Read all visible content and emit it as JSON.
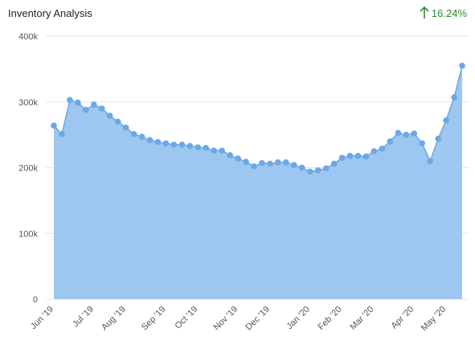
{
  "header": {
    "title": "Inventory Analysis",
    "change_text": "16.24%",
    "change_icon": "arrow-up-icon",
    "change_color": "#2e8b2e"
  },
  "colors": {
    "area_fill": "#9dc6f0",
    "line": "#6aa9e6",
    "point": "#6aa9e6",
    "grid": "#e6e6e6"
  },
  "chart_data": {
    "type": "area",
    "title": "Inventory Analysis",
    "xlabel": "",
    "ylabel": "",
    "ylim": [
      0,
      400000
    ],
    "grid": true,
    "y_ticks": [
      {
        "value": 0,
        "label": "0"
      },
      {
        "value": 100000,
        "label": "100k"
      },
      {
        "value": 200000,
        "label": "200k"
      },
      {
        "value": 300000,
        "label": "300k"
      },
      {
        "value": 400000,
        "label": "400k"
      }
    ],
    "x_ticks": [
      {
        "index": 0,
        "label": "Jun '19"
      },
      {
        "index": 5,
        "label": "Jul '19"
      },
      {
        "index": 9,
        "label": "Aug '19"
      },
      {
        "index": 14,
        "label": "Sep '19"
      },
      {
        "index": 18,
        "label": "Oct '19"
      },
      {
        "index": 23,
        "label": "Nov '19"
      },
      {
        "index": 27,
        "label": "Dec '19"
      },
      {
        "index": 32,
        "label": "Jan '20"
      },
      {
        "index": 36,
        "label": "Feb '20"
      },
      {
        "index": 40,
        "label": "Mar '20"
      },
      {
        "index": 45,
        "label": "Apr '20"
      },
      {
        "index": 49,
        "label": "May '20"
      }
    ],
    "values": [
      264000,
      251000,
      303000,
      299000,
      288000,
      296000,
      290000,
      279000,
      270000,
      261000,
      251000,
      247000,
      242000,
      239000,
      237000,
      235000,
      235000,
      233000,
      231000,
      230000,
      226000,
      226000,
      219000,
      214000,
      209000,
      202000,
      207000,
      206000,
      208000,
      208000,
      204000,
      200000,
      194000,
      196000,
      199000,
      206000,
      215000,
      218000,
      218000,
      217000,
      225000,
      229000,
      240000,
      253000,
      250000,
      252000,
      237000,
      210000,
      244000,
      272000,
      307000,
      355000
    ]
  }
}
